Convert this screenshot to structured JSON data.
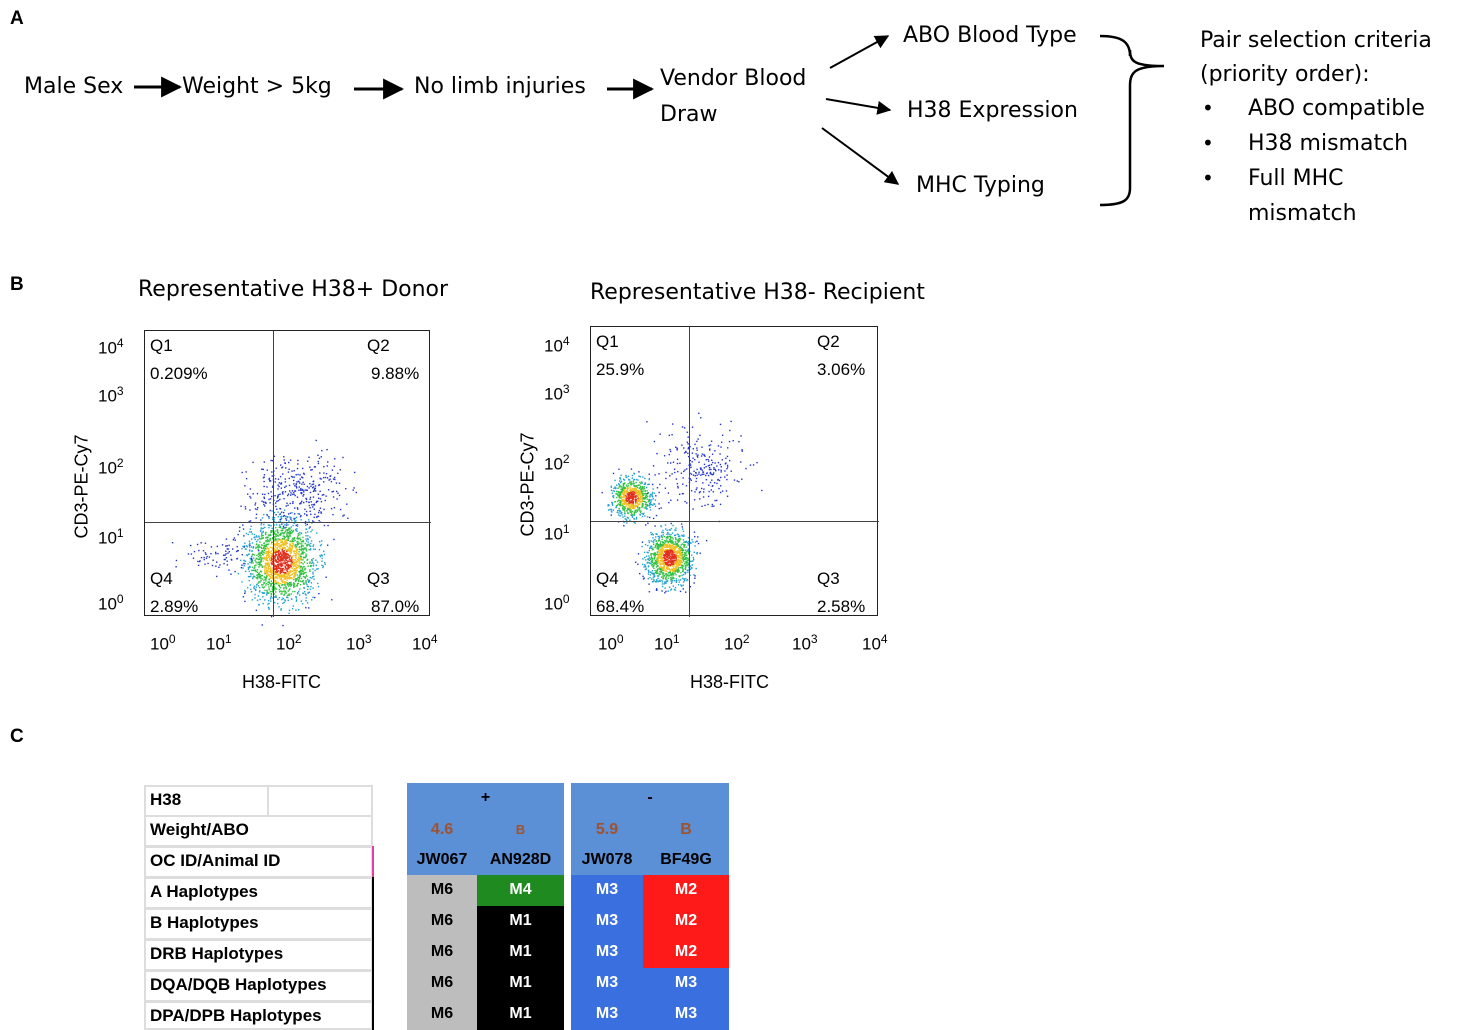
{
  "panels": {
    "a": "A",
    "b": "B",
    "c": "C"
  },
  "flow": {
    "male_sex": "Male Sex",
    "weight": "Weight > 5kg",
    "no_limb": "No limb injuries",
    "vendor_line1": "Vendor  Blood",
    "vendor_line2": "Draw",
    "abo": "ABO Blood Type",
    "h38_expr": "H38 Expression",
    "mhc": "MHC Typing"
  },
  "criteria": {
    "title_line1": "Pair selection criteria",
    "title_line2": "(priority order):",
    "bullet": "•",
    "item1": "ABO compatible",
    "item2": "H38 mismatch",
    "item3_line1": "Full MHC",
    "item3_line2": "mismatch"
  },
  "plots": {
    "donor": {
      "title": "Representative H38+ Donor",
      "q1_name": "Q1",
      "q1_val": "0.209%",
      "q2_name": "Q2",
      "q2_val": "9.88%",
      "q3_name": "Q3",
      "q3_val": "87.0%",
      "q4_name": "Q4",
      "q4_val": "2.89%",
      "xlabel": "H38-FITC",
      "ylabel": "CD3-PE-Cy7"
    },
    "recipient": {
      "title": "Representative H38- Recipient",
      "q1_name": "Q1",
      "q1_val": "25.9%",
      "q2_name": "Q2",
      "q2_val": "3.06%",
      "q3_name": "Q3",
      "q3_val": "2.58%",
      "q4_name": "Q4",
      "q4_val": "68.4%",
      "xlabel": "H38-FITC",
      "ylabel": "CD3-PE-Cy7"
    },
    "tick_base": "10",
    "tick_exp": [
      "0",
      "1",
      "2",
      "3",
      "4"
    ]
  },
  "table": {
    "row_labels": [
      "H38",
      "Weight/ABO",
      "OC ID/Animal ID",
      "A Haplotypes",
      "B Haplotypes",
      "DRB Haplotypes",
      "DQA/DQB Haplotypes",
      "DPA/DPB Haplotypes"
    ],
    "h38_plus": "+",
    "h38_minus": "-",
    "weights": [
      "4.6",
      "B",
      "5.9",
      "B"
    ],
    "ids": [
      "JW067",
      "AN928D",
      "JW078",
      "BF49G"
    ],
    "haplotypes": [
      [
        "M6",
        "M4",
        "M3",
        "M2"
      ],
      [
        "M6",
        "M1",
        "M3",
        "M2"
      ],
      [
        "M6",
        "M1",
        "M3",
        "M2"
      ],
      [
        "M6",
        "M1",
        "M3",
        "M3"
      ],
      [
        "M6",
        "M1",
        "M3",
        "M3"
      ]
    ],
    "colors": {
      "header_blue": "#5b8fd6",
      "weight_brown": "#a0522d",
      "gray": "#bdbdbd",
      "green": "#1f8a1f",
      "black": "#000000",
      "blue": "#3a6fe0",
      "red": "#ff1a1a"
    }
  }
}
